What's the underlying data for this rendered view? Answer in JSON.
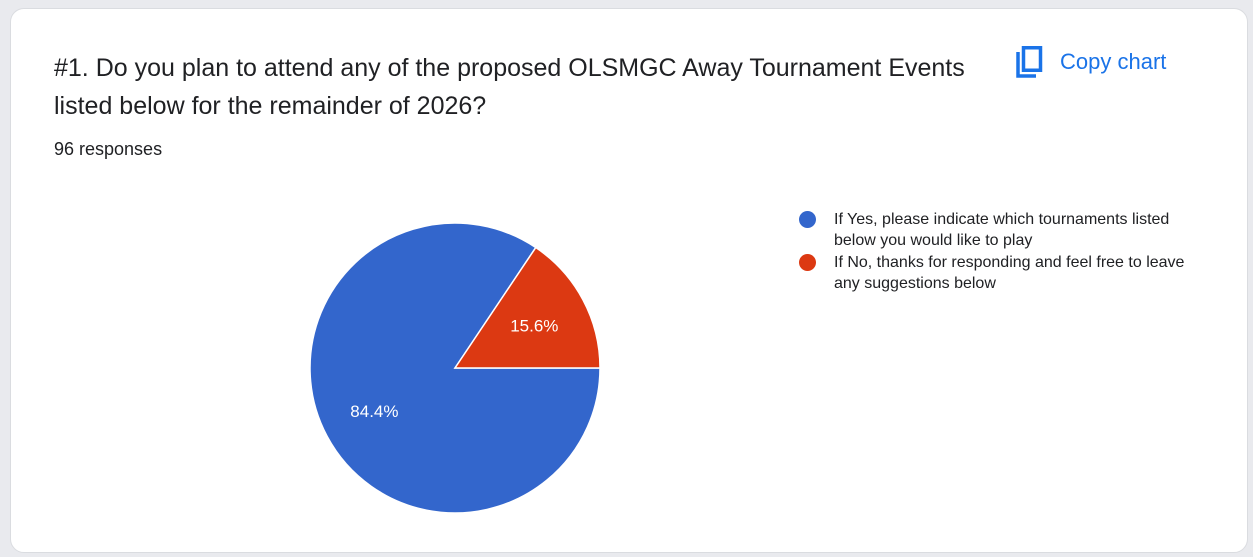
{
  "header": {
    "title": "#1.  Do you plan to attend any of the proposed OLSMGC Away Tournament Events listed below for the remainder of 2026?",
    "responses": "96 responses",
    "copy_chart_label": "Copy chart",
    "copy_icon": "copy-icon"
  },
  "chart_data": {
    "type": "pie",
    "total_responses": 96,
    "slices": [
      {
        "label": "If Yes, please indicate which tournaments listed below you would like to play",
        "value": 84.4,
        "display": "84.4%",
        "color": "#3366cc"
      },
      {
        "label": "If No, thanks for responding and feel free to leave any suggestions below",
        "value": 15.6,
        "display": "15.6%",
        "color": "#dc3912"
      }
    ],
    "legend_position": "right"
  }
}
